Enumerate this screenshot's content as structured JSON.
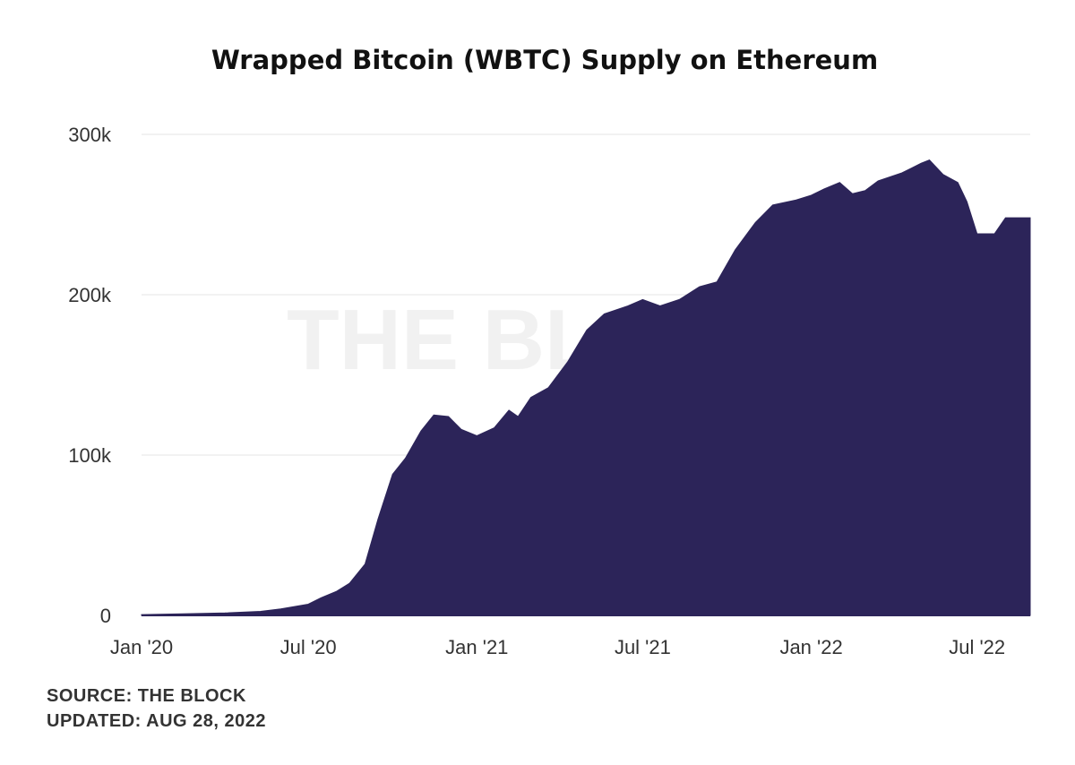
{
  "chart_data": {
    "type": "area",
    "title": "Wrapped Bitcoin (WBTC) Supply on Ethereum",
    "watermark": "THE BLOCK",
    "color": "#2c2459",
    "grid": true,
    "ylim": [
      0,
      300000
    ],
    "y_ticks": [
      {
        "value": 0,
        "label": "0"
      },
      {
        "value": 100000,
        "label": "100k"
      },
      {
        "value": 200000,
        "label": "200k"
      },
      {
        "value": 300000,
        "label": "300k"
      }
    ],
    "x_range": [
      "2020-01-01",
      "2022-08-28"
    ],
    "x_ticks": [
      {
        "date": "2020-01-01",
        "label": "Jan '20"
      },
      {
        "date": "2020-07-01",
        "label": "Jul '20"
      },
      {
        "date": "2021-01-01",
        "label": "Jan '21"
      },
      {
        "date": "2021-07-01",
        "label": "Jul '21"
      },
      {
        "date": "2022-01-01",
        "label": "Jan '22"
      },
      {
        "date": "2022-07-01",
        "label": "Jul '22"
      }
    ],
    "series": [
      {
        "points": [
          [
            "2020-01-01",
            500
          ],
          [
            "2020-02-15",
            1000
          ],
          [
            "2020-04-01",
            1500
          ],
          [
            "2020-05-10",
            2500
          ],
          [
            "2020-06-01",
            4000
          ],
          [
            "2020-07-01",
            7000
          ],
          [
            "2020-07-15",
            11000
          ],
          [
            "2020-08-01",
            15000
          ],
          [
            "2020-08-15",
            20000
          ],
          [
            "2020-09-01",
            32000
          ],
          [
            "2020-09-15",
            60000
          ],
          [
            "2020-10-01",
            88000
          ],
          [
            "2020-10-15",
            98000
          ],
          [
            "2020-11-01",
            115000
          ],
          [
            "2020-11-15",
            125000
          ],
          [
            "2020-12-01",
            124000
          ],
          [
            "2020-12-15",
            116000
          ],
          [
            "2021-01-01",
            112000
          ],
          [
            "2021-01-20",
            117000
          ],
          [
            "2021-02-05",
            128000
          ],
          [
            "2021-02-15",
            124000
          ],
          [
            "2021-03-01",
            136000
          ],
          [
            "2021-03-20",
            142000
          ],
          [
            "2021-04-10",
            158000
          ],
          [
            "2021-05-01",
            178000
          ],
          [
            "2021-05-20",
            188000
          ],
          [
            "2021-06-15",
            193000
          ],
          [
            "2021-07-01",
            197000
          ],
          [
            "2021-07-20",
            193000
          ],
          [
            "2021-08-10",
            197000
          ],
          [
            "2021-09-01",
            205000
          ],
          [
            "2021-09-20",
            208000
          ],
          [
            "2021-10-10",
            228000
          ],
          [
            "2021-11-01",
            245000
          ],
          [
            "2021-11-20",
            256000
          ],
          [
            "2021-12-15",
            259000
          ],
          [
            "2022-01-01",
            262000
          ],
          [
            "2022-01-15",
            266000
          ],
          [
            "2022-02-01",
            270000
          ],
          [
            "2022-02-15",
            263000
          ],
          [
            "2022-03-01",
            265000
          ],
          [
            "2022-03-15",
            271000
          ],
          [
            "2022-04-10",
            276000
          ],
          [
            "2022-05-01",
            282000
          ],
          [
            "2022-05-10",
            284000
          ],
          [
            "2022-05-25",
            275000
          ],
          [
            "2022-06-10",
            270000
          ],
          [
            "2022-06-20",
            258000
          ],
          [
            "2022-07-01",
            238000
          ],
          [
            "2022-07-20",
            238000
          ],
          [
            "2022-08-01",
            248000
          ],
          [
            "2022-08-28",
            248000
          ]
        ]
      }
    ]
  },
  "footer": {
    "source": "SOURCE: THE BLOCK",
    "updated": "UPDATED: AUG 28, 2022"
  }
}
